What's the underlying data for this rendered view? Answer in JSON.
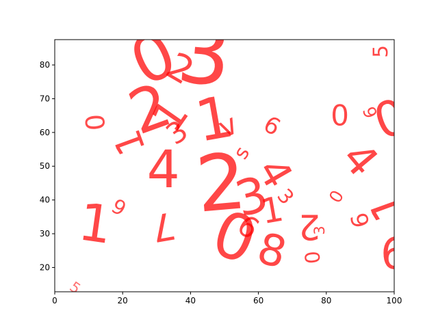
{
  "chart_data": {
    "type": "scatter",
    "title": "",
    "xlabel": "",
    "ylabel": "",
    "xlim": [
      0,
      100
    ],
    "ylim": [
      12.8,
      87.5
    ],
    "xticks": [
      0,
      20,
      40,
      60,
      80,
      100
    ],
    "yticks": [
      20,
      30,
      40,
      50,
      60,
      70,
      80
    ],
    "grid": false,
    "legend": "none",
    "marker_color": "#ff0000",
    "series": [
      {
        "points": [
          {
            "x": 6,
            "y": 14,
            "text": "5",
            "size": 10,
            "rotation": -35,
            "opacity": 0.55
          },
          {
            "x": 12,
            "y": 33,
            "text": "1",
            "size": 36,
            "rotation": -8,
            "opacity": 0.72
          },
          {
            "x": 19,
            "y": 38,
            "text": "6",
            "size": 14,
            "rotation": 150,
            "opacity": 0.7
          },
          {
            "x": 12,
            "y": 63,
            "text": "0",
            "size": 18,
            "rotation": 95,
            "opacity": 0.7
          },
          {
            "x": 22,
            "y": 57,
            "text": "1",
            "size": 26,
            "rotation": 110,
            "opacity": 0.72
          },
          {
            "x": 28,
            "y": 67,
            "text": "2",
            "size": 42,
            "rotation": 20,
            "opacity": 0.72
          },
          {
            "x": 37,
            "y": 79,
            "text": "2",
            "size": 26,
            "rotation": -30,
            "opacity": 0.72
          },
          {
            "x": 36,
            "y": 60,
            "text": "3",
            "size": 20,
            "rotation": 35,
            "opacity": 0.72
          },
          {
            "x": 34,
            "y": 65,
            "text": "1",
            "size": 30,
            "rotation": 55,
            "opacity": 0.72
          },
          {
            "x": 44,
            "y": 83,
            "text": "3",
            "size": 58,
            "rotation": -5,
            "opacity": 0.72
          },
          {
            "x": 29,
            "y": 82,
            "text": "0",
            "size": 44,
            "rotation": 25,
            "opacity": 0.72
          },
          {
            "x": 47,
            "y": 64,
            "text": "1",
            "size": 40,
            "rotation": 10,
            "opacity": 0.72
          },
          {
            "x": 51,
            "y": 62,
            "text": "v",
            "size": 20,
            "rotation": 25,
            "opacity": 0.72
          },
          {
            "x": 32,
            "y": 49,
            "text": "4",
            "size": 36,
            "rotation": 0,
            "opacity": 0.72
          },
          {
            "x": 49,
            "y": 45,
            "text": "2",
            "size": 54,
            "rotation": 5,
            "opacity": 0.72
          },
          {
            "x": 55,
            "y": 54,
            "text": "s",
            "size": 14,
            "rotation": 60,
            "opacity": 0.72
          },
          {
            "x": 58,
            "y": 41,
            "text": "3",
            "size": 34,
            "rotation": 15,
            "opacity": 0.72
          },
          {
            "x": 65,
            "y": 48,
            "text": "4",
            "size": 28,
            "rotation": -60,
            "opacity": 0.72
          },
          {
            "x": 64,
            "y": 62,
            "text": "6",
            "size": 16,
            "rotation": -30,
            "opacity": 0.72
          },
          {
            "x": 68,
            "y": 41,
            "text": "3",
            "size": 14,
            "rotation": -50,
            "opacity": 0.72
          },
          {
            "x": 32,
            "y": 32,
            "text": "7",
            "size": 26,
            "rotation": 190,
            "opacity": 0.72
          },
          {
            "x": 53,
            "y": 29,
            "text": "0",
            "size": 44,
            "rotation": -20,
            "opacity": 0.72
          },
          {
            "x": 64,
            "y": 25,
            "text": "8",
            "size": 30,
            "rotation": -15,
            "opacity": 0.72
          },
          {
            "x": 64,
            "y": 37,
            "text": "1",
            "size": 24,
            "rotation": 10,
            "opacity": 0.72
          },
          {
            "x": 57,
            "y": 32,
            "text": "6",
            "size": 20,
            "rotation": -35,
            "opacity": 0.72
          },
          {
            "x": 75,
            "y": 32,
            "text": "2",
            "size": 24,
            "rotation": 180,
            "opacity": 0.72
          },
          {
            "x": 78,
            "y": 31,
            "text": "3",
            "size": 10,
            "rotation": 90,
            "opacity": 0.72
          },
          {
            "x": 76,
            "y": 23,
            "text": "0",
            "size": 14,
            "rotation": 95,
            "opacity": 0.72
          },
          {
            "x": 83,
            "y": 41,
            "text": "0",
            "size": 12,
            "rotation": 60,
            "opacity": 0.72
          },
          {
            "x": 90,
            "y": 34,
            "text": "6",
            "size": 16,
            "rotation": 105,
            "opacity": 0.72
          },
          {
            "x": 84,
            "y": 65,
            "text": "0",
            "size": 20,
            "rotation": 0,
            "opacity": 0.72
          },
          {
            "x": 93,
            "y": 66,
            "text": "6",
            "size": 12,
            "rotation": 110,
            "opacity": 0.72
          },
          {
            "x": 90,
            "y": 52,
            "text": "4",
            "size": 30,
            "rotation": -50,
            "opacity": 0.72
          },
          {
            "x": 98,
            "y": 38,
            "text": "1",
            "size": 30,
            "rotation": 110,
            "opacity": 0.72
          },
          {
            "x": 99,
            "y": 64,
            "text": "0",
            "size": 34,
            "rotation": 20,
            "opacity": 0.72
          },
          {
            "x": 100,
            "y": 24,
            "text": "6",
            "size": 30,
            "rotation": 0,
            "opacity": 0.72
          },
          {
            "x": 96,
            "y": 84,
            "text": "5",
            "size": 14,
            "rotation": 90,
            "opacity": 0.72
          }
        ]
      }
    ]
  }
}
